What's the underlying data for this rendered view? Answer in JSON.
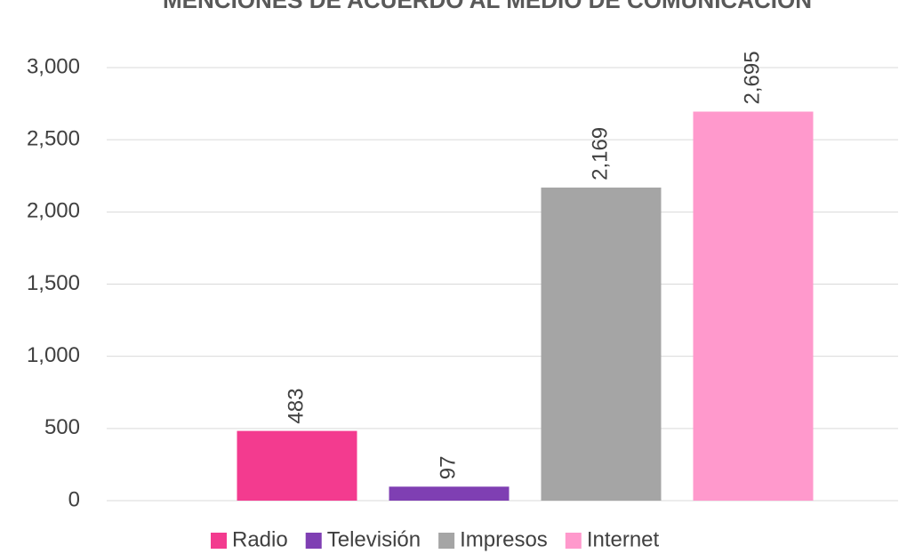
{
  "chart_data": {
    "type": "bar",
    "title": "MENCIONES DE ACUERDO AL MEDIO DE COMUNICACIÓN",
    "series": [
      {
        "name": "Radio",
        "color": "#f33b8f",
        "values": [
          483
        ]
      },
      {
        "name": "Televisión",
        "color": "#7f3fb3",
        "values": [
          97
        ]
      },
      {
        "name": "Impresos",
        "color": "#a5a5a5",
        "values": [
          2169
        ],
        "value_labels": [
          "2,169"
        ]
      },
      {
        "name": "Internet",
        "color": "#ff99cc",
        "values": [
          2695
        ],
        "value_labels": [
          "2,695"
        ]
      }
    ],
    "ylim": [
      0,
      3000
    ],
    "yticks": [
      0,
      500,
      {
        "value": 1000,
        "label": "1,000"
      },
      {
        "value": 1500,
        "label": "1,500"
      },
      {
        "value": 2000,
        "label": "2,000"
      },
      {
        "value": 2500,
        "label": "2,500"
      },
      {
        "value": 3000,
        "label": "3,000"
      }
    ],
    "grid": true,
    "legend": "bottom"
  }
}
